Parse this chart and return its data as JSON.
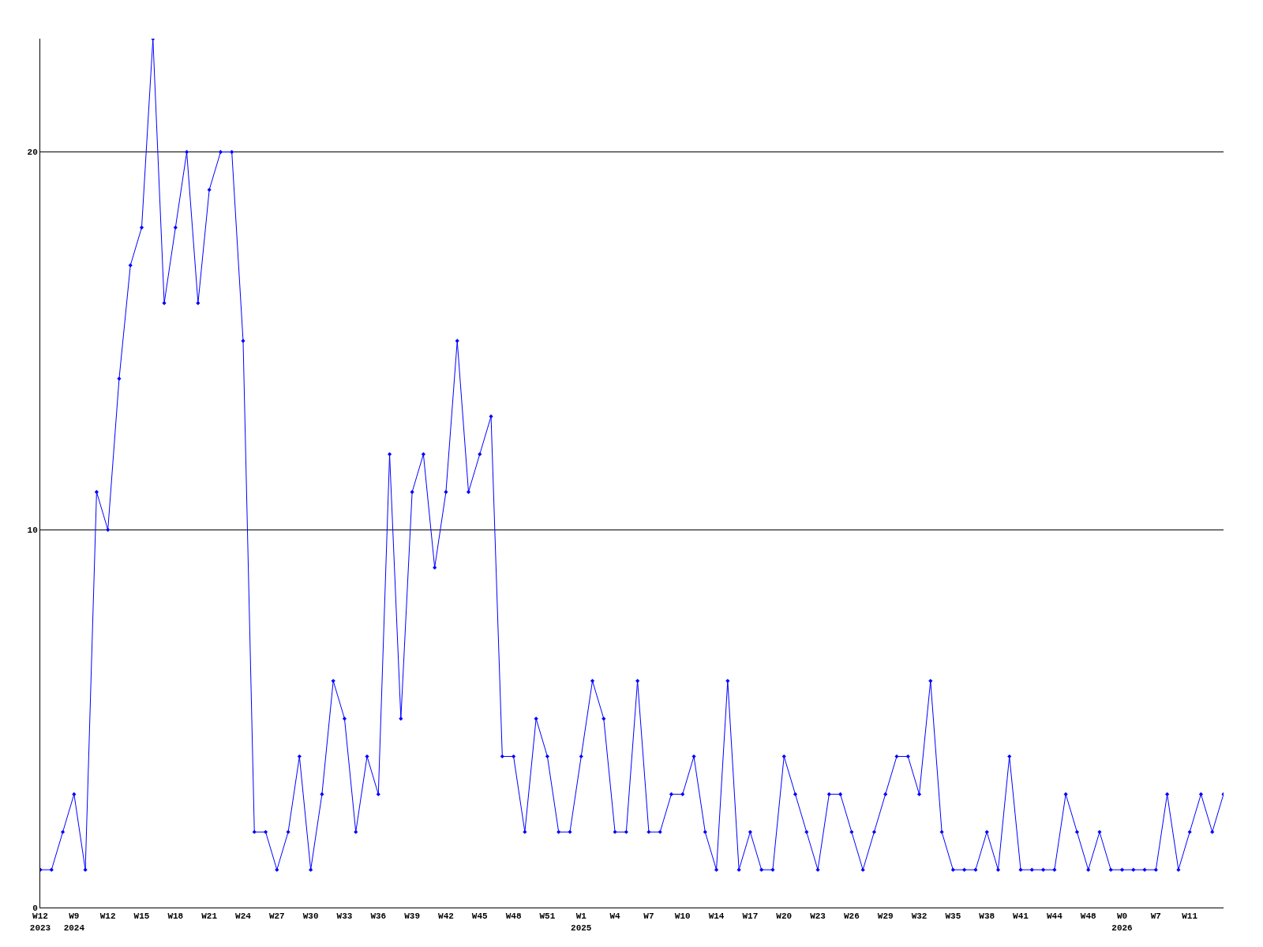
{
  "chart_data": {
    "type": "line",
    "categories": [
      "W12\n2023",
      null,
      null,
      "W9\n2024",
      null,
      null,
      "W12",
      null,
      null,
      "W15",
      null,
      null,
      "W18",
      null,
      null,
      "W21",
      null,
      null,
      "W24",
      null,
      null,
      "W27",
      null,
      null,
      "W30",
      null,
      null,
      "W33",
      null,
      null,
      "W36",
      null,
      null,
      "W39",
      null,
      null,
      "W42",
      null,
      null,
      "W45",
      null,
      null,
      "W48",
      null,
      null,
      "W51",
      null,
      null,
      "W1\n2025",
      null,
      null,
      "W4",
      null,
      null,
      "W7",
      null,
      null,
      "W10",
      null,
      null,
      "W14",
      null,
      null,
      "W17",
      null,
      null,
      "W20",
      null,
      null,
      "W23",
      null,
      null,
      "W26",
      null,
      null,
      "W29",
      null,
      null,
      "W32",
      null,
      null,
      "W35",
      null,
      null,
      "W38",
      null,
      null,
      "W41",
      null,
      null,
      "W44",
      null,
      null,
      "W48",
      null,
      null,
      "W0\n2026",
      null,
      null,
      "W7",
      null,
      null,
      "W11",
      null,
      null,
      null
    ],
    "series": [
      {
        "color": "#0000ff",
        "values": [
          1,
          1,
          2,
          3,
          1,
          11,
          10,
          14,
          17,
          18,
          23,
          16,
          18,
          20,
          16,
          19,
          20,
          20,
          15,
          2,
          2,
          1,
          2,
          4,
          1,
          3,
          6,
          5,
          2,
          4,
          3,
          12,
          5,
          11,
          12,
          9,
          11,
          15,
          11,
          12,
          13,
          4,
          4,
          2,
          5,
          4,
          2,
          2,
          4,
          6,
          5,
          2,
          2,
          6,
          2,
          2,
          3,
          3,
          4,
          2,
          1,
          6,
          1,
          2,
          1,
          1,
          4,
          3,
          2,
          1,
          3,
          3,
          2,
          1,
          2,
          3,
          4,
          4,
          3,
          6,
          2,
          1,
          1,
          1,
          2,
          1,
          4,
          1,
          1,
          1,
          1,
          3,
          2,
          1,
          2,
          1,
          1,
          1,
          1,
          1,
          3,
          1,
          2,
          3,
          2,
          3
        ]
      }
    ],
    "ylim": [
      0,
      23
    ],
    "yticks": [
      0,
      10,
      20
    ],
    "grid": "y",
    "marker": "diamond",
    "line_style": "solid"
  }
}
